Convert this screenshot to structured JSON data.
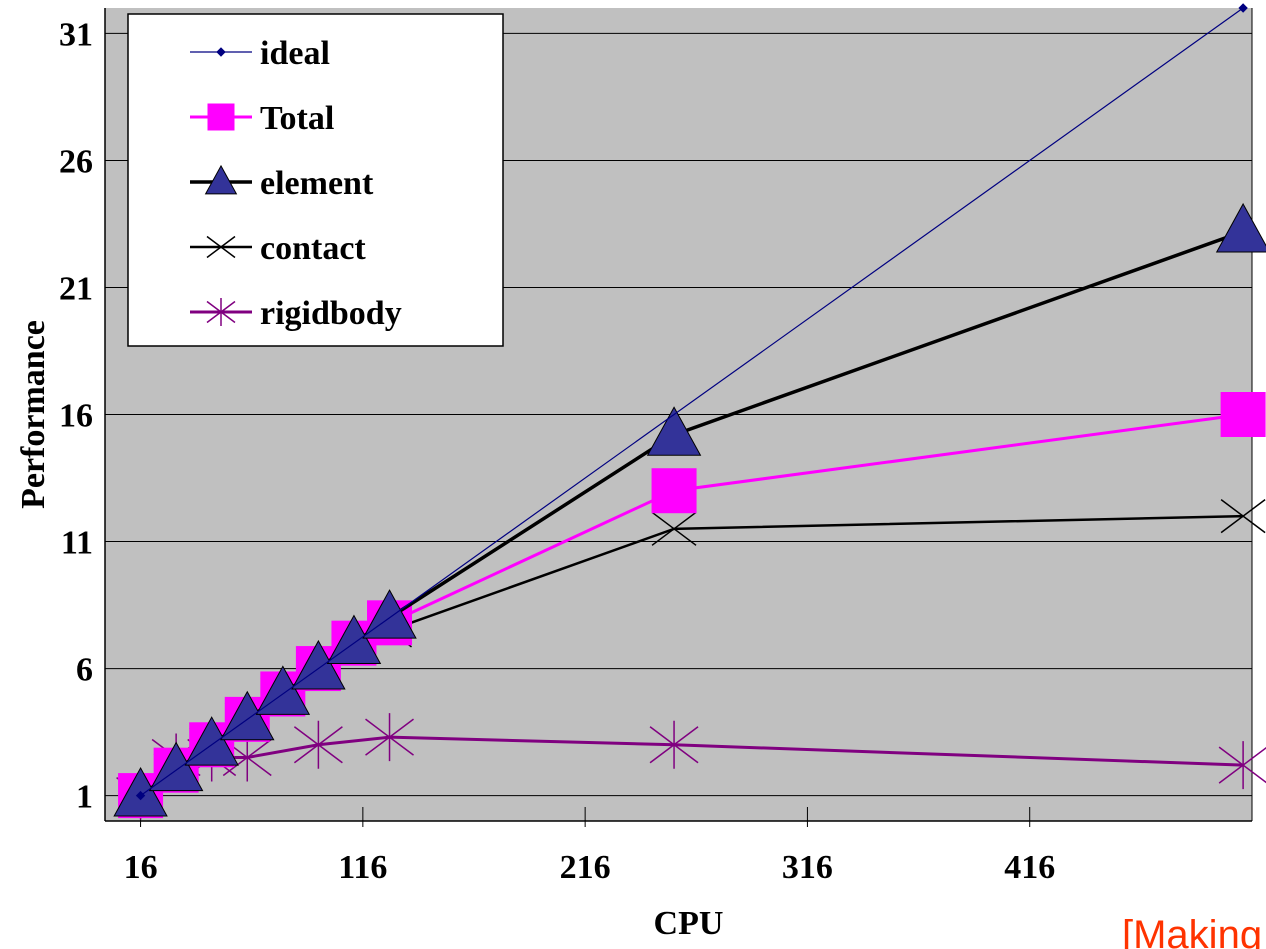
{
  "chart_data": {
    "type": "line",
    "xlabel": "CPU",
    "ylabel": "Performance",
    "x_ticks": [
      16,
      116,
      216,
      316,
      416
    ],
    "y_ticks": [
      1,
      6,
      11,
      16,
      21,
      26,
      31
    ],
    "xlim": [
      0,
      516
    ],
    "ylim": [
      0,
      32
    ],
    "grid": "horizontal",
    "legend_position": "top-left",
    "note": "[Making",
    "series": [
      {
        "name": "ideal",
        "color": "#000080",
        "marker": "diamond",
        "x": [
          16,
          512
        ],
        "y": [
          1,
          32
        ]
      },
      {
        "name": "Total",
        "color": "#ff00ff",
        "marker": "square",
        "x": [
          16,
          32,
          48,
          64,
          80,
          96,
          112,
          128,
          256,
          512
        ],
        "y": [
          1,
          2,
          3,
          4,
          5,
          6,
          7,
          7.8,
          13,
          16
        ]
      },
      {
        "name": "element",
        "color": "#000000",
        "marker": "triangle",
        "x": [
          16,
          32,
          48,
          64,
          80,
          96,
          112,
          128,
          256,
          512
        ],
        "y": [
          1,
          2,
          3,
          4,
          5,
          6,
          7,
          8,
          15.2,
          23.2
        ]
      },
      {
        "name": "contact",
        "color": "#000000",
        "marker": "x",
        "x": [
          16,
          32,
          48,
          64,
          80,
          96,
          112,
          128,
          256,
          512
        ],
        "y": [
          1,
          2,
          3,
          4,
          5,
          6,
          6.8,
          7.5,
          11.5,
          12
        ]
      },
      {
        "name": "rigidbody",
        "color": "#800080",
        "marker": "asterisk",
        "x": [
          16,
          32,
          48,
          64,
          96,
          128,
          256,
          512
        ],
        "y": [
          1,
          2.5,
          2.5,
          2.5,
          3,
          3.3,
          3,
          2.2
        ]
      }
    ]
  }
}
